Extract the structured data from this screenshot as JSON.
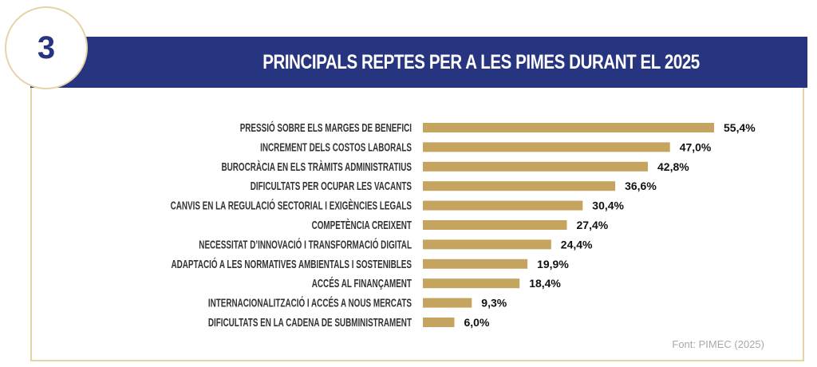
{
  "badge": {
    "number": "3"
  },
  "header": {
    "title": "PRINCIPALS REPTES PER A LES PIMES DURANT EL 2025"
  },
  "source": "Font: PIMEC (2025)",
  "colors": {
    "header_band": "#273580",
    "bar": "#c4a45f",
    "frame": "#e6d3a6"
  },
  "chart_data": {
    "type": "bar",
    "orientation": "horizontal",
    "title": "PRINCIPALS REPTES PER A LES PIMES DURANT EL 2025",
    "xlabel": "",
    "ylabel": "",
    "unit": "%",
    "xlim": [
      0,
      55.4
    ],
    "grid": false,
    "categories": [
      "PRESSIÓ SOBRE ELS MARGES DE BENEFICI",
      "INCREMENT DELS COSTOS LABORALS",
      "BUROCRÀCIA EN ELS TRÀMITS ADMINISTRATIUS",
      "DIFICULTATS PER OCUPAR LES VACANTS",
      "CANVIS EN LA REGULACIÓ SECTORIAL I EXIGÈNCIES LEGALS",
      "COMPETÈNCIA CREIXENT",
      "NECESSITAT D’INNOVACIÓ I TRANSFORMACIÓ DIGITAL",
      "ADAPTACIÓ A LES NORMATIVES AMBIENTALS I SOSTENIBLES",
      "ACCÉS AL FINANÇAMENT",
      "INTERNACIONALITZACIÓ I ACCÉS A NOUS MERCATS",
      "DIFICULTATS EN LA CADENA DE SUBMINISTRAMENT"
    ],
    "values": [
      55.4,
      47.0,
      42.8,
      36.6,
      30.4,
      27.4,
      24.4,
      19.9,
      18.4,
      9.3,
      6.0
    ],
    "value_labels": [
      "55,4%",
      "47,0%",
      "42,8%",
      "36,6%",
      "30,4%",
      "27,4%",
      "24,4%",
      "19,9%",
      "18,4%",
      "9,3%",
      "6,0%"
    ]
  }
}
